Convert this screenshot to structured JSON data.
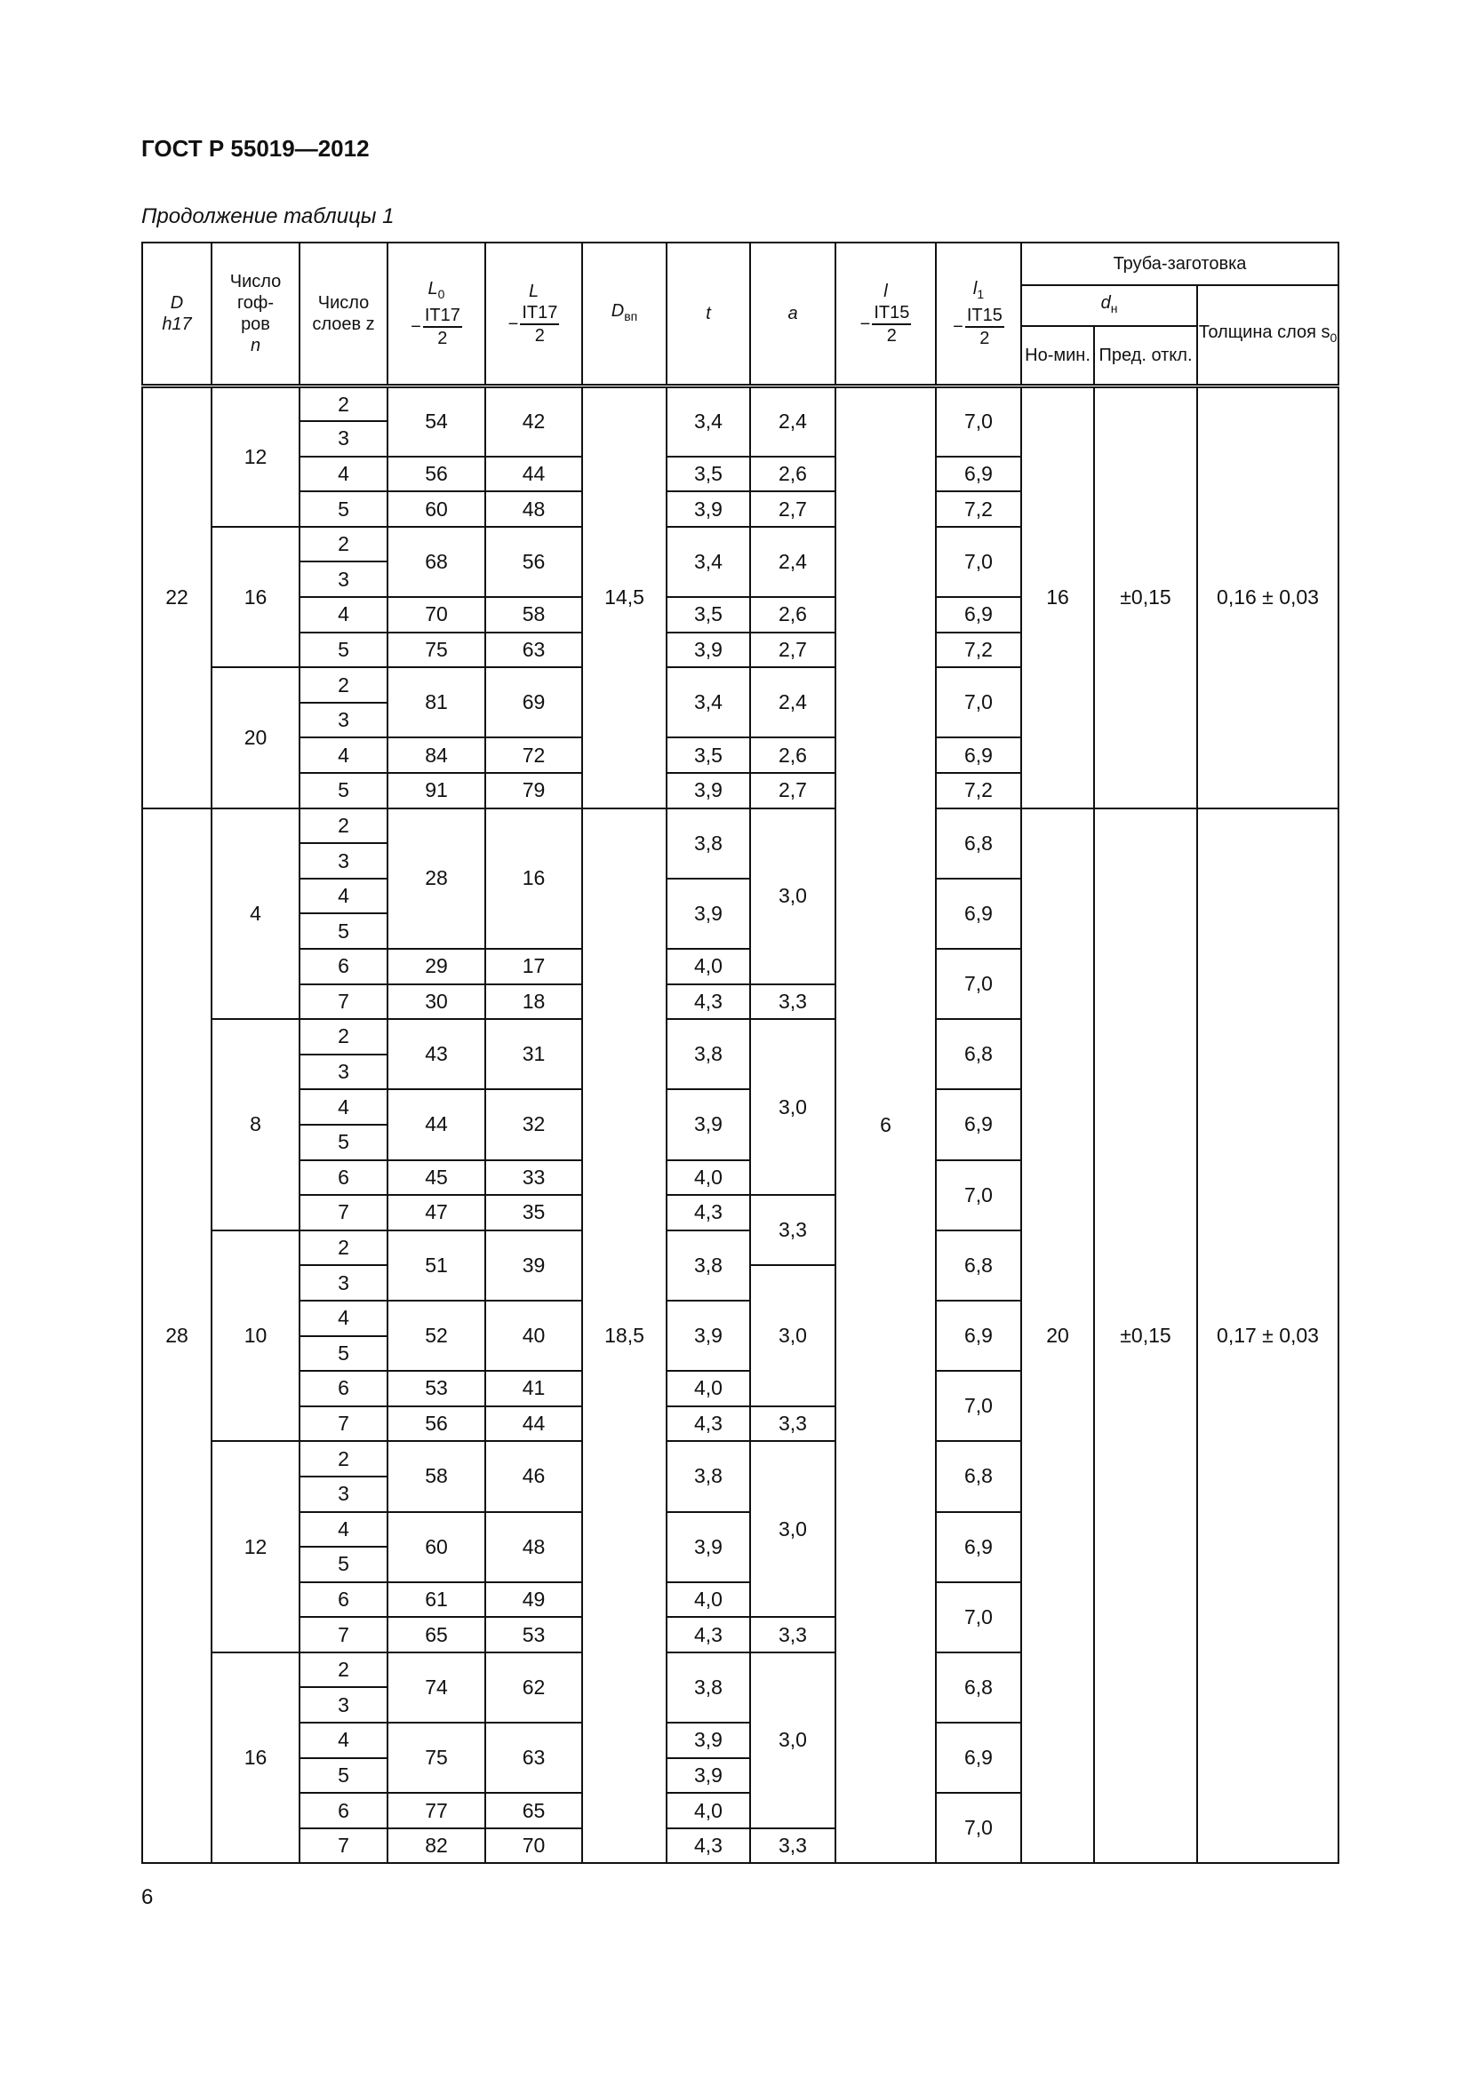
{
  "document": {
    "title": "ГОСТ Р 55019—2012",
    "caption": "Продолжение таблицы 1",
    "page_number": "6"
  },
  "header": {
    "D": "D",
    "D_sub": "h17",
    "n_label": "Число гоф-ров",
    "n_var": "n",
    "z_label": "Число слоев z",
    "L0": "L",
    "L0_sub": "0",
    "L0_tol": "IT17",
    "L0_den": "2",
    "L": "L",
    "L_tol": "IT17",
    "L_den": "2",
    "Dvp": "D",
    "Dvp_sub": "вп",
    "t": "t",
    "a": "a",
    "l": "l",
    "l_tol": "IT15",
    "l_den": "2",
    "l1": "l",
    "l1_sub": "1",
    "l1_tol": "IT15",
    "l1_den": "2",
    "minus": "−",
    "tube": "Труба-заготовка",
    "dn": "d",
    "dn_sub": "н",
    "nom": "Но-мин.",
    "pred": "Пред. откл.",
    "s0": "Толщина слоя s",
    "s0_sub": "0"
  },
  "table": {
    "rows": [
      [
        [
          "22",
          12
        ],
        [
          "12",
          4
        ],
        [
          "2",
          1
        ],
        [
          "54",
          2
        ],
        [
          "42",
          2
        ],
        [
          "14,5",
          12
        ],
        [
          "3,4",
          2
        ],
        [
          "2,4",
          2
        ],
        [
          "6",
          42
        ],
        [
          "7,0",
          2
        ],
        [
          "16",
          12
        ],
        [
          "±0,15",
          12
        ],
        [
          "0,16 ± 0,03",
          12
        ]
      ],
      [
        [
          "3",
          1
        ]
      ],
      [
        [
          "4",
          1
        ],
        [
          "56",
          1
        ],
        [
          "44",
          1
        ],
        [
          "3,5",
          1
        ],
        [
          "2,6",
          1
        ],
        [
          "6,9",
          1
        ]
      ],
      [
        [
          "5",
          1
        ],
        [
          "60",
          1
        ],
        [
          "48",
          1
        ],
        [
          "3,9",
          1
        ],
        [
          "2,7",
          1
        ],
        [
          "7,2",
          1
        ]
      ],
      [
        [
          "16",
          4
        ],
        [
          "2",
          1
        ],
        [
          "68",
          2
        ],
        [
          "56",
          2
        ],
        [
          "3,4",
          2
        ],
        [
          "2,4",
          2
        ],
        [
          "7,0",
          2
        ]
      ],
      [
        [
          "3",
          1
        ]
      ],
      [
        [
          "4",
          1
        ],
        [
          "70",
          1
        ],
        [
          "58",
          1
        ],
        [
          "3,5",
          1
        ],
        [
          "2,6",
          1
        ],
        [
          "6,9",
          1
        ]
      ],
      [
        [
          "5",
          1
        ],
        [
          "75",
          1
        ],
        [
          "63",
          1
        ],
        [
          "3,9",
          1
        ],
        [
          "2,7",
          1
        ],
        [
          "7,2",
          1
        ]
      ],
      [
        [
          "20",
          4
        ],
        [
          "2",
          1
        ],
        [
          "81",
          2
        ],
        [
          "69",
          2
        ],
        [
          "3,4",
          2
        ],
        [
          "2,4",
          2
        ],
        [
          "7,0",
          2
        ]
      ],
      [
        [
          "3",
          1
        ]
      ],
      [
        [
          "4",
          1
        ],
        [
          "84",
          1
        ],
        [
          "72",
          1
        ],
        [
          "3,5",
          1
        ],
        [
          "2,6",
          1
        ],
        [
          "6,9",
          1
        ]
      ],
      [
        [
          "5",
          1
        ],
        [
          "91",
          1
        ],
        [
          "79",
          1
        ],
        [
          "3,9",
          1
        ],
        [
          "2,7",
          1
        ],
        [
          "7,2",
          1
        ]
      ],
      [
        [
          "28",
          30
        ],
        [
          "4",
          6
        ],
        [
          "2",
          1
        ],
        [
          "28",
          4
        ],
        [
          "16",
          4
        ],
        [
          "18,5",
          30
        ],
        [
          "3,8",
          2
        ],
        [
          "3,0",
          5
        ],
        [
          "6,8",
          2
        ],
        [
          "20",
          30
        ],
        [
          "±0,15",
          30
        ],
        [
          "0,17 ± 0,03",
          30
        ]
      ],
      [
        [
          "3",
          1
        ]
      ],
      [
        [
          "4",
          1
        ],
        [
          "3,9",
          2
        ],
        [
          "6,9",
          2
        ]
      ],
      [
        [
          "5",
          1
        ]
      ],
      [
        [
          "6",
          1
        ],
        [
          "29",
          1
        ],
        [
          "17",
          1
        ],
        [
          "4,0",
          1
        ],
        [
          "7,0",
          2
        ]
      ],
      [
        [
          "7",
          1
        ],
        [
          "30",
          1
        ],
        [
          "18",
          1
        ],
        [
          "4,3",
          1
        ],
        [
          "3,3",
          1
        ]
      ],
      [
        [
          "8",
          6
        ],
        [
          "2",
          1
        ],
        [
          "43",
          2
        ],
        [
          "31",
          2
        ],
        [
          "3,8",
          2
        ],
        [
          "3,0",
          5
        ],
        [
          "6,8",
          2
        ]
      ],
      [
        [
          "3",
          1
        ]
      ],
      [
        [
          "4",
          1
        ],
        [
          "44",
          2
        ],
        [
          "32",
          2
        ],
        [
          "3,9",
          2
        ],
        [
          "6,9",
          2
        ]
      ],
      [
        [
          "5",
          1
        ]
      ],
      [
        [
          "6",
          1
        ],
        [
          "45",
          1
        ],
        [
          "33",
          1
        ],
        [
          "4,0",
          1
        ],
        [
          "7,0",
          2
        ]
      ],
      [
        [
          "7",
          1
        ],
        [
          "47",
          1
        ],
        [
          "35",
          1
        ],
        [
          "4,3",
          1
        ],
        [
          "3,3",
          2
        ]
      ],
      [
        [
          "10",
          6
        ],
        [
          "2",
          1
        ],
        [
          "51",
          2
        ],
        [
          "39",
          2
        ],
        [
          "3,8",
          2
        ],
        [
          "6,8",
          2
        ]
      ],
      [
        [
          "3",
          1
        ],
        [
          "3,0",
          4
        ]
      ],
      [
        [
          "4",
          1
        ],
        [
          "52",
          2
        ],
        [
          "40",
          2
        ],
        [
          "3,9",
          2
        ],
        [
          "6,9",
          2
        ]
      ],
      [
        [
          "5",
          1
        ]
      ],
      [
        [
          "6",
          1
        ],
        [
          "53",
          1
        ],
        [
          "41",
          1
        ],
        [
          "4,0",
          1
        ],
        [
          "7,0",
          2
        ]
      ],
      [
        [
          "7",
          1
        ],
        [
          "56",
          1
        ],
        [
          "44",
          1
        ],
        [
          "4,3",
          1
        ],
        [
          "3,3",
          1
        ]
      ],
      [
        [
          "12",
          6
        ],
        [
          "2",
          1
        ],
        [
          "58",
          2
        ],
        [
          "46",
          2
        ],
        [
          "3,8",
          2
        ],
        [
          "3,0",
          5
        ],
        [
          "6,8",
          2
        ]
      ],
      [
        [
          "3",
          1
        ]
      ],
      [
        [
          "4",
          1
        ],
        [
          "60",
          2
        ],
        [
          "48",
          2
        ],
        [
          "3,9",
          2
        ],
        [
          "6,9",
          2
        ]
      ],
      [
        [
          "5",
          1
        ]
      ],
      [
        [
          "6",
          1
        ],
        [
          "61",
          1
        ],
        [
          "49",
          1
        ],
        [
          "4,0",
          1
        ],
        [
          "7,0",
          2
        ]
      ],
      [
        [
          "7",
          1
        ],
        [
          "65",
          1
        ],
        [
          "53",
          1
        ],
        [
          "4,3",
          1
        ],
        [
          "3,3",
          1
        ]
      ],
      [
        [
          "16",
          6
        ],
        [
          "2",
          1
        ],
        [
          "74",
          2
        ],
        [
          "62",
          2
        ],
        [
          "3,8",
          2
        ],
        [
          "3,0",
          5
        ],
        [
          "6,8",
          2
        ]
      ],
      [
        [
          "3",
          1
        ]
      ],
      [
        [
          "4",
          1
        ],
        [
          "75",
          2
        ],
        [
          "63",
          2
        ],
        [
          "3,9",
          1
        ],
        [
          "6,9",
          2
        ]
      ],
      [
        [
          "5",
          1
        ],
        [
          "3,9",
          1
        ]
      ],
      [
        [
          "6",
          1
        ],
        [
          "77",
          1
        ],
        [
          "65",
          1
        ],
        [
          "4,0",
          1
        ],
        [
          "7,0",
          2
        ]
      ],
      [
        [
          "7",
          1
        ],
        [
          "82",
          1
        ],
        [
          "70",
          1
        ],
        [
          "4,3",
          1
        ],
        [
          "3,3",
          1
        ]
      ]
    ]
  }
}
